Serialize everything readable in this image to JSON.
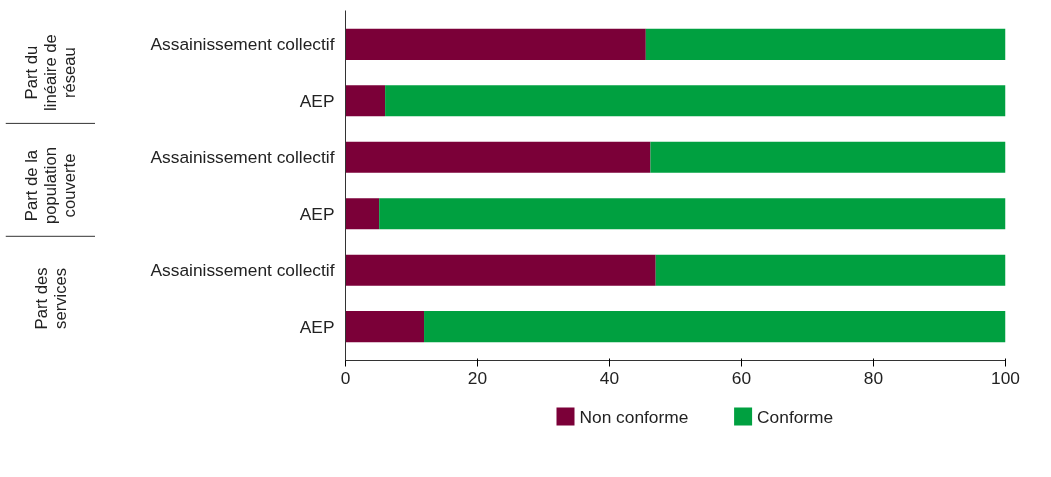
{
  "chart_data": {
    "type": "bar",
    "orientation": "horizontal",
    "stacked": true,
    "categories": [
      "Assainissement collectif",
      "AEP",
      "Assainissement collectif",
      "AEP",
      "Assainissement collectif",
      "AEP"
    ],
    "annotations": [
      "Part du linéaire de réseau",
      "Part de la population couverte",
      "Part des services"
    ],
    "series": [
      {
        "name": "Non conforme",
        "color": "#7b0038",
        "values": [
          45.5,
          6.0,
          46.2,
          5.1,
          47.0,
          11.9
        ]
      },
      {
        "name": "Conforme",
        "color": "#00a040",
        "values": [
          54.5,
          94.0,
          53.8,
          94.9,
          53.0,
          88.1
        ]
      }
    ],
    "xlim": [
      0,
      100
    ],
    "xticks": [
      0,
      20,
      40,
      60,
      80,
      100
    ],
    "legend": "bottom"
  }
}
